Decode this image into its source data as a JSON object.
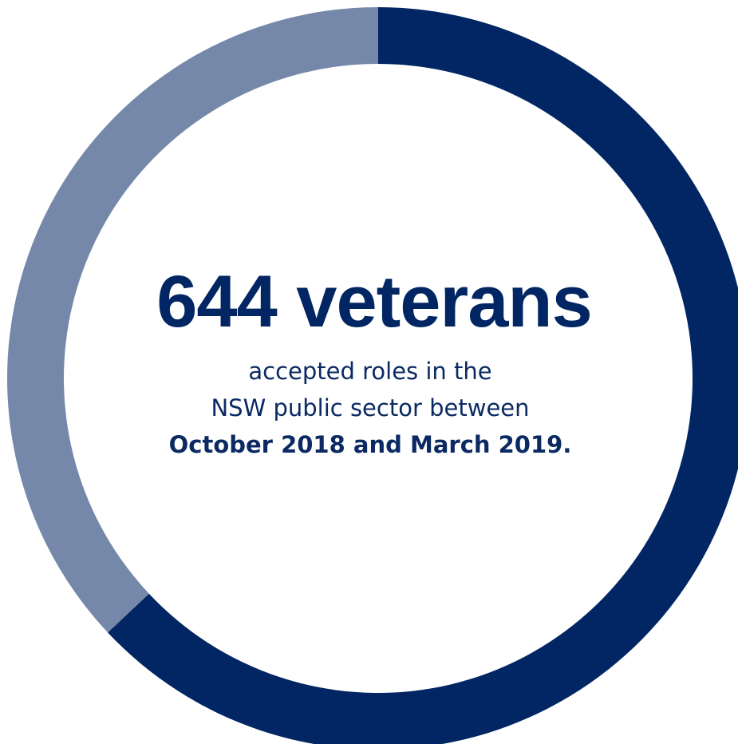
{
  "chart_data": {
    "type": "pie",
    "variant": "donut",
    "slices": [
      {
        "value": 0.63,
        "color": "#012663"
      },
      {
        "value": 0.37,
        "color": "#7688aa"
      }
    ],
    "start_angle_deg": 0,
    "direction": "clockwise"
  },
  "headline": "644 veterans",
  "subtext": {
    "line1": "accepted roles in the",
    "line2": "NSW public sector between",
    "line3": "October 2018 and March 2019."
  }
}
